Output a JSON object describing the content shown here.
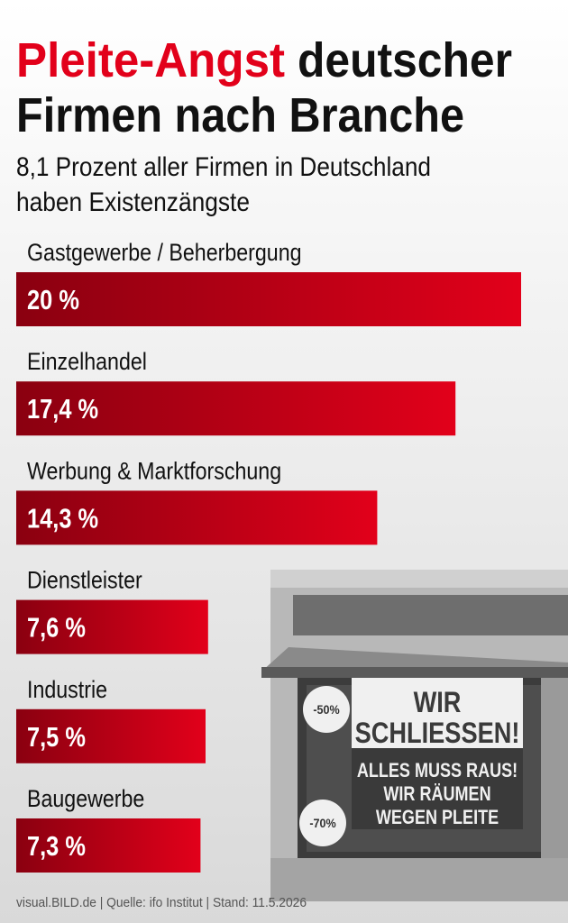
{
  "chart_data": {
    "type": "bar",
    "orientation": "horizontal",
    "title": [
      {
        "text": "Pleite-Angst",
        "color": "#e2001a"
      },
      {
        "text": "deutscher",
        "color": "#111111"
      },
      {
        "text": "Firmen nach Branche",
        "color": "#111111"
      }
    ],
    "subtitle": [
      "8,1 Prozent aller Firmen in Deutschland",
      "haben Existenzängste"
    ],
    "categories": [
      "Gastgewerbe / Beherbergung",
      "Einzelhandel",
      "Werbung & Marktforschung",
      "Dienstleister",
      "Industrie",
      "Baugewerbe"
    ],
    "values": [
      20,
      17.4,
      14.3,
      7.6,
      7.5,
      7.3
    ],
    "value_labels": [
      "20 %",
      "17,4 %",
      "14,3 %",
      "7,6 %",
      "7,5 %",
      "7,3 %"
    ],
    "color": "#e2001a",
    "xlim": [
      0,
      20
    ],
    "footer": "visual.BILD.de | Quelle: ifo Institut | Stand: 11.5.2026"
  },
  "illustration": {
    "sign": [
      "WIR",
      "SCHLIESSEN!",
      "ALLES MUSS RAUS!",
      "WIR RÄUMEN",
      "WEGEN PLEITE"
    ],
    "stickers": [
      "-50%",
      "-70%"
    ]
  }
}
